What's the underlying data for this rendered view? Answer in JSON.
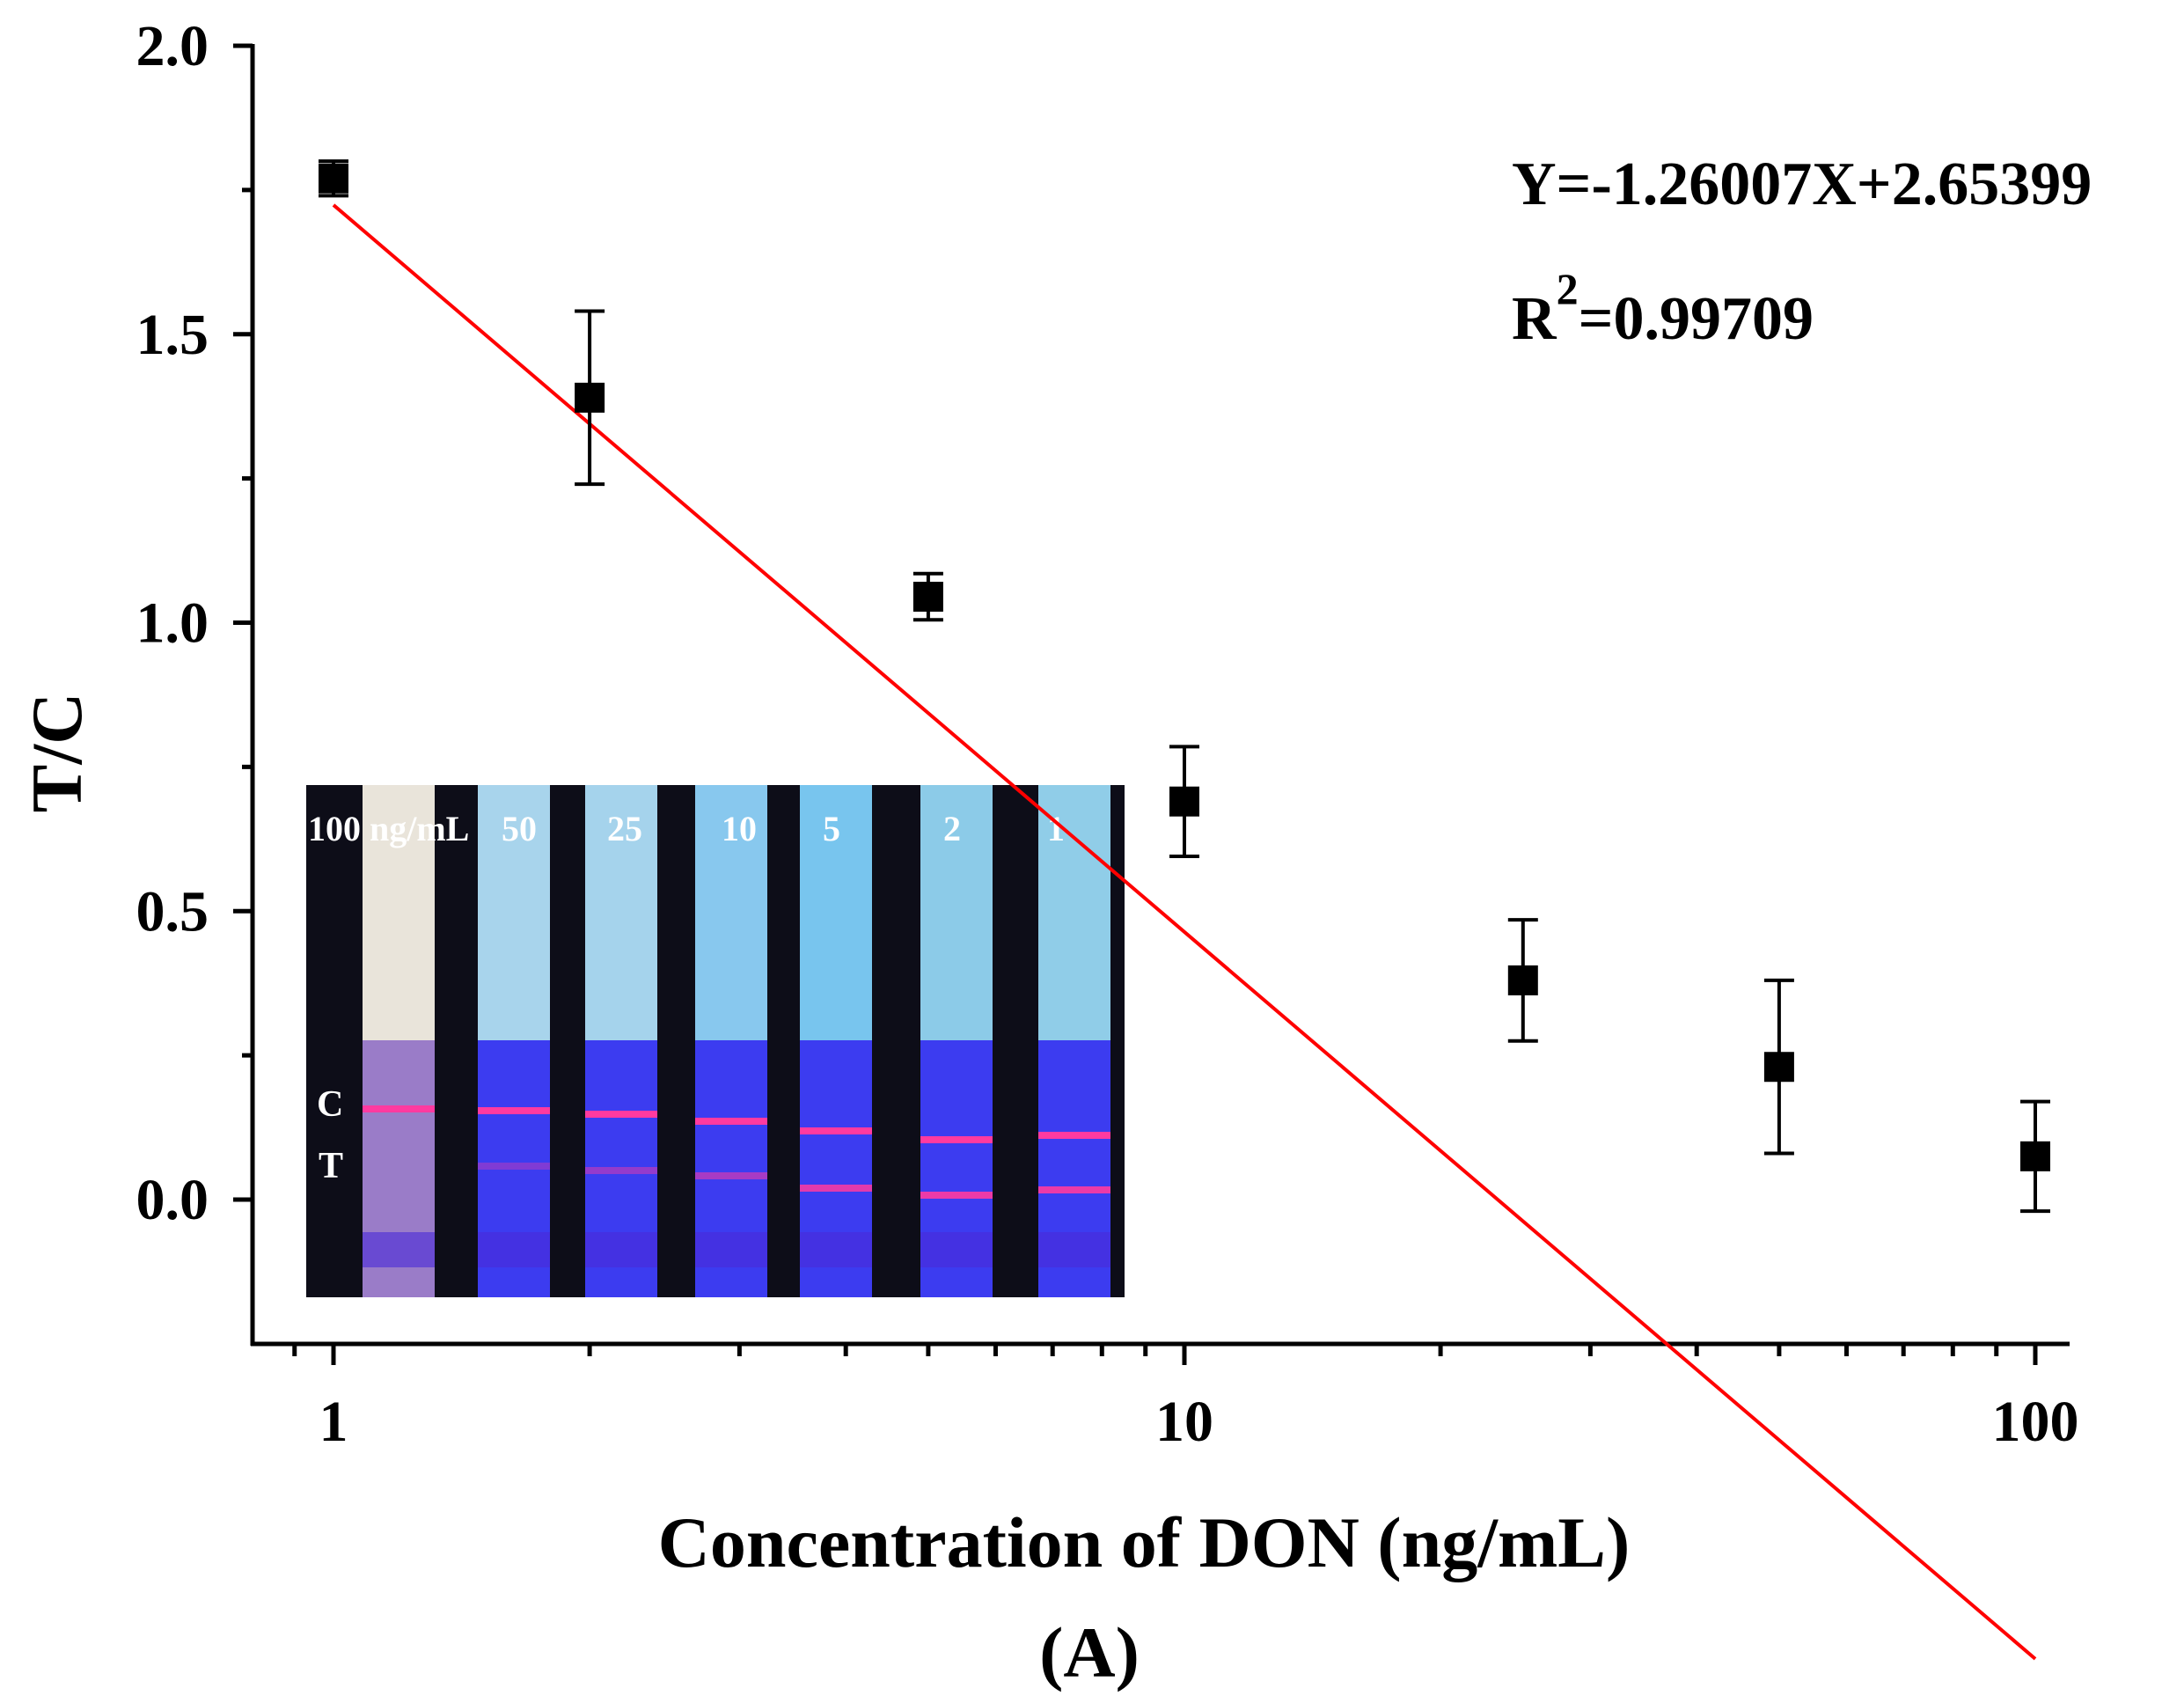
{
  "chart_data": {
    "type": "scatter",
    "title": "",
    "xlabel": "Concentration of DON (ng/mL)",
    "ylabel": "T/C",
    "xscale": "log",
    "xlim": [
      0.75,
      115
    ],
    "ylim": [
      -0.25,
      2.0
    ],
    "x_ticks": [
      1,
      10,
      100
    ],
    "x_tick_labels": [
      "1",
      "10",
      "100"
    ],
    "y_ticks": [
      0.0,
      0.5,
      1.0,
      1.5,
      2.0
    ],
    "y_tick_labels": [
      "0.0",
      "0.5",
      "1.0",
      "1.5",
      "2.0"
    ],
    "series": [
      {
        "name": "T/C ratio",
        "marker": "square",
        "color": "#000000",
        "x": [
          1,
          2,
          5,
          10,
          25,
          50,
          100
        ],
        "y": [
          1.77,
          1.39,
          1.045,
          0.69,
          0.38,
          0.23,
          0.075
        ],
        "error": [
          0.03,
          0.15,
          0.04,
          0.095,
          0.105,
          0.15,
          0.095
        ]
      }
    ],
    "fit": {
      "slope": -1.26007,
      "intercept": 2.65399,
      "x_range": [
        1,
        100
      ],
      "color": "#ff0000",
      "equation_text": "Y=-1.26007X+2.65399",
      "r2_prefix": "R",
      "r2_exp": "2",
      "r2_value": "=0.99709"
    },
    "panel_label": "(A)",
    "inset": {
      "description_labels": [
        "100 ng/mL",
        "50",
        "25",
        "10",
        "5",
        "2",
        "1"
      ],
      "c_label": "C",
      "t_label": "T",
      "strip_tops": [
        "#e9e4da",
        "#a8d4ec",
        "#a5d3ec",
        "#88c8ee",
        "#78c5ee",
        "#8ccbe8",
        "#90cde8"
      ],
      "strip_bottom": "#3c3cf0",
      "band_color": "#ff3aa0",
      "background": "#0d0d18"
    }
  }
}
